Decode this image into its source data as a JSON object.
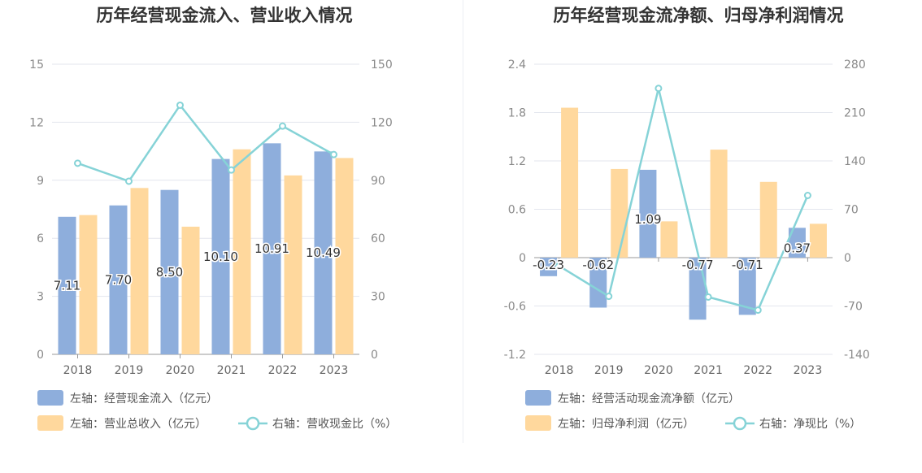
{
  "colors": {
    "bar_primary": "#8eaedc",
    "bar_secondary": "#ffd89d",
    "line": "#86d3d7",
    "grid": "#e3e6ee",
    "axis": "#9a9a9a"
  },
  "chart_data": [
    {
      "type": "bar",
      "title": "历年经营现金流入、营业收入情况",
      "categories": [
        "2018",
        "2019",
        "2020",
        "2021",
        "2022",
        "2023"
      ],
      "left_axis": {
        "ylim": [
          0,
          15
        ],
        "ticks": [
          "0",
          "3",
          "6",
          "9",
          "12",
          "15"
        ]
      },
      "right_axis": {
        "ylim": [
          0,
          150
        ],
        "ticks": [
          "0",
          "30",
          "60",
          "90",
          "120",
          "150"
        ]
      },
      "series": [
        {
          "name": "左轴：经营现金流入（亿元）",
          "kind": "bar",
          "axis": "left",
          "color": "#8eaedc",
          "values": [
            7.11,
            7.7,
            8.5,
            10.1,
            10.91,
            10.49
          ],
          "labels": [
            "7.11",
            "7.70",
            "8.50",
            "10.10",
            "10.91",
            "10.49"
          ]
        },
        {
          "name": "左轴：营业总收入（亿元）",
          "kind": "bar",
          "axis": "left",
          "color": "#ffd89d",
          "values": [
            7.2,
            8.6,
            6.6,
            10.6,
            9.25,
            10.15
          ]
        },
        {
          "name": "右轴：营收现金比（%）",
          "kind": "line",
          "axis": "right",
          "color": "#86d3d7",
          "values": [
            98.8,
            89.5,
            128.8,
            95.3,
            118.0,
            103.3
          ]
        }
      ],
      "legend": "bottom",
      "grid": true
    },
    {
      "type": "bar",
      "title": "历年经营现金流净额、归母净利润情况",
      "categories": [
        "2018",
        "2019",
        "2020",
        "2021",
        "2022",
        "2023"
      ],
      "left_axis": {
        "ylim": [
          -1.2,
          2.4
        ],
        "ticks": [
          "-1.2",
          "-0.6",
          "0",
          "0.6",
          "1.2",
          "1.8",
          "2.4"
        ]
      },
      "right_axis": {
        "ylim": [
          -140,
          280
        ],
        "ticks": [
          "-140",
          "-70",
          "0",
          "70",
          "140",
          "210",
          "280"
        ]
      },
      "series": [
        {
          "name": "左轴：经营活动现金流净额（亿元）",
          "kind": "bar",
          "axis": "left",
          "color": "#8eaedc",
          "values": [
            -0.23,
            -0.62,
            1.09,
            -0.77,
            -0.71,
            0.37
          ],
          "labels": [
            "-0.23",
            "-0.62",
            "1.09",
            "-0.77",
            "-0.71",
            "0.37"
          ]
        },
        {
          "name": "左轴：归母净利润（亿元）",
          "kind": "bar",
          "axis": "left",
          "color": "#ffd89d",
          "values": [
            1.86,
            1.1,
            0.45,
            1.34,
            0.94,
            0.42
          ]
        },
        {
          "name": "右轴：净现比（%）",
          "kind": "line",
          "axis": "right",
          "color": "#86d3d7",
          "values": [
            -12,
            -56,
            245,
            -57,
            -76,
            90
          ]
        }
      ],
      "legend": "bottom",
      "grid": true
    }
  ]
}
